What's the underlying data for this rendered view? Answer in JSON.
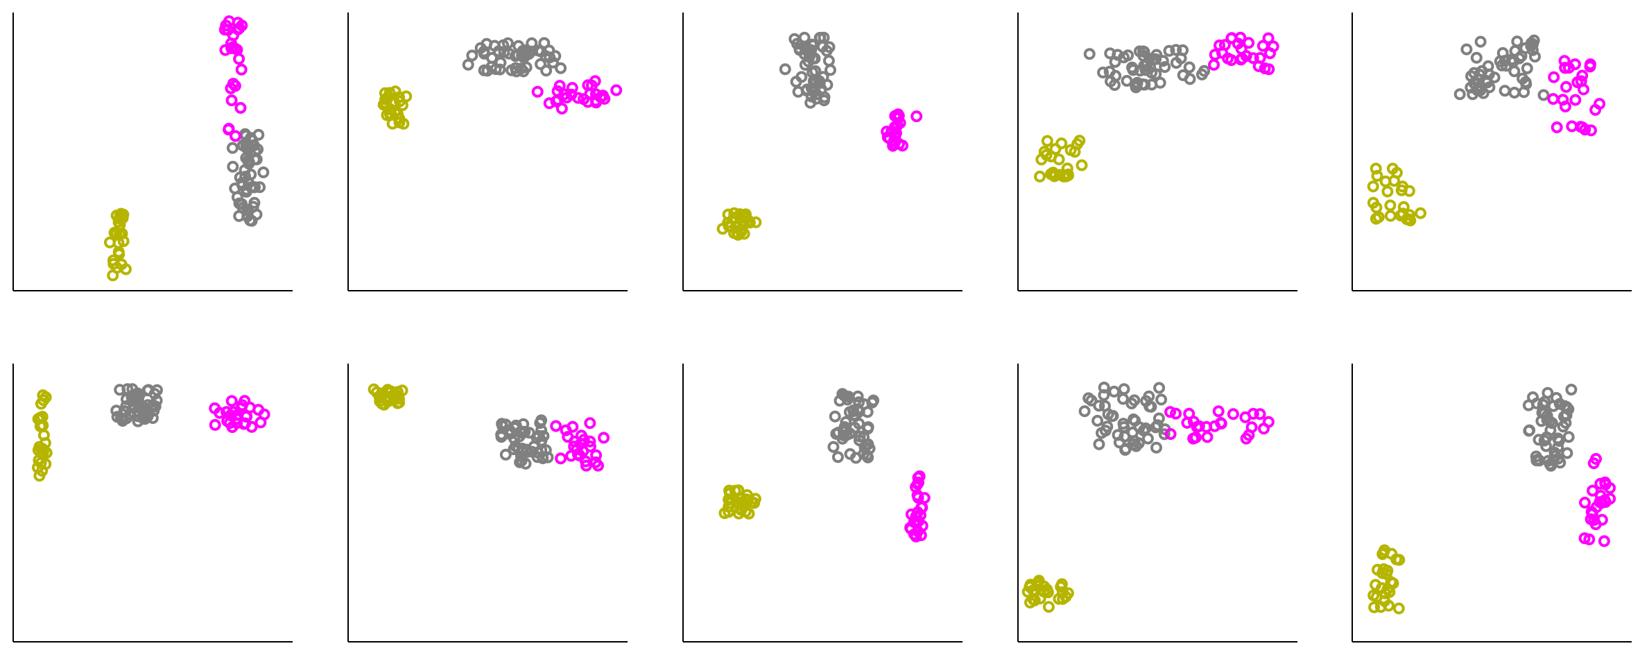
{
  "chart_data": [
    {
      "type": "scatter",
      "title": "",
      "xlabel": "",
      "ylabel": "",
      "xlim": [
        0,
        1
      ],
      "ylim": [
        0,
        1
      ],
      "grid": false,
      "axes_visible": [
        "left",
        "bottom"
      ],
      "ticks_visible": false,
      "series": [
        {
          "color": "#b5b500",
          "centroid": [
            0.38,
            0.17
          ],
          "spread": [
            0.04,
            0.12
          ],
          "count": 25,
          "marker": "open-circle"
        },
        {
          "color": "#808080",
          "centroid": [
            0.84,
            0.41
          ],
          "spread": [
            0.06,
            0.17
          ],
          "count": 50,
          "marker": "open-circle"
        },
        {
          "color": "#ff00ff",
          "centroid": [
            0.79,
            0.77
          ],
          "spread": [
            0.04,
            0.22
          ],
          "count": 25,
          "marker": "open-circle"
        }
      ]
    },
    {
      "type": "scatter",
      "title": "",
      "xlabel": "",
      "ylabel": "",
      "xlim": [
        0,
        1
      ],
      "ylim": [
        0,
        1
      ],
      "grid": false,
      "axes_visible": [
        "left",
        "bottom"
      ],
      "ticks_visible": false,
      "series": [
        {
          "color": "#b5b500",
          "centroid": [
            0.16,
            0.66
          ],
          "spread": [
            0.04,
            0.06
          ],
          "count": 25,
          "marker": "open-circle"
        },
        {
          "color": "#808080",
          "centroid": [
            0.6,
            0.84
          ],
          "spread": [
            0.14,
            0.06
          ],
          "count": 50,
          "marker": "open-circle"
        },
        {
          "color": "#ff00ff",
          "centroid": [
            0.83,
            0.7
          ],
          "spread": [
            0.12,
            0.06
          ],
          "count": 25,
          "marker": "open-circle"
        }
      ]
    },
    {
      "type": "scatter",
      "title": "",
      "xlabel": "",
      "ylabel": "",
      "xlim": [
        0,
        1
      ],
      "ylim": [
        0,
        1
      ],
      "grid": false,
      "axes_visible": [
        "left",
        "bottom"
      ],
      "ticks_visible": false,
      "series": [
        {
          "color": "#b5b500",
          "centroid": [
            0.2,
            0.24
          ],
          "spread": [
            0.12,
            0.04
          ],
          "count": 25,
          "marker": "open-circle"
        },
        {
          "color": "#808080",
          "centroid": [
            0.46,
            0.79
          ],
          "spread": [
            0.18,
            0.12
          ],
          "count": 50,
          "marker": "open-circle"
        },
        {
          "color": "#ff00ff",
          "centroid": [
            0.76,
            0.58
          ],
          "spread": [
            0.15,
            0.06
          ],
          "count": 25,
          "marker": "open-circle"
        }
      ]
    },
    {
      "type": "scatter",
      "title": "",
      "xlabel": "",
      "ylabel": "",
      "xlim": [
        0,
        1
      ],
      "ylim": [
        0,
        1
      ],
      "grid": false,
      "axes_visible": [
        "left",
        "bottom"
      ],
      "ticks_visible": false,
      "series": [
        {
          "color": "#b5b500",
          "centroid": [
            0.15,
            0.47
          ],
          "spread": [
            0.07,
            0.07
          ],
          "count": 25,
          "marker": "open-circle"
        },
        {
          "color": "#808080",
          "centroid": [
            0.46,
            0.8
          ],
          "spread": [
            0.16,
            0.07
          ],
          "count": 50,
          "marker": "open-circle"
        },
        {
          "color": "#ff00ff",
          "centroid": [
            0.81,
            0.85
          ],
          "spread": [
            0.1,
            0.06
          ],
          "count": 25,
          "marker": "open-circle"
        }
      ]
    },
    {
      "type": "scatter",
      "title": "",
      "xlabel": "",
      "ylabel": "",
      "xlim": [
        0,
        1
      ],
      "ylim": [
        0,
        1
      ],
      "grid": false,
      "axes_visible": [
        "left",
        "bottom"
      ],
      "ticks_visible": false,
      "series": [
        {
          "color": "#b5b500",
          "centroid": [
            0.15,
            0.33
          ],
          "spread": [
            0.08,
            0.11
          ],
          "count": 25,
          "marker": "open-circle"
        },
        {
          "color": "#808080",
          "centroid": [
            0.53,
            0.8
          ],
          "spread": [
            0.16,
            0.1
          ],
          "count": 50,
          "marker": "open-circle"
        },
        {
          "color": "#ff00ff",
          "centroid": [
            0.8,
            0.7
          ],
          "spread": [
            0.09,
            0.13
          ],
          "count": 25,
          "marker": "open-circle"
        }
      ]
    },
    {
      "type": "scatter",
      "title": "",
      "xlabel": "",
      "ylabel": "",
      "xlim": [
        0,
        1
      ],
      "ylim": [
        0,
        1
      ],
      "grid": false,
      "axes_visible": [
        "left",
        "bottom"
      ],
      "ticks_visible": false,
      "series": [
        {
          "color": "#b5b500",
          "centroid": [
            0.1,
            0.74
          ],
          "spread": [
            0.03,
            0.15
          ],
          "count": 25,
          "marker": "open-circle"
        },
        {
          "color": "#808080",
          "centroid": [
            0.45,
            0.85
          ],
          "spread": [
            0.13,
            0.06
          ],
          "count": 50,
          "marker": "open-circle"
        },
        {
          "color": "#ff00ff",
          "centroid": [
            0.81,
            0.82
          ],
          "spread": [
            0.13,
            0.05
          ],
          "count": 25,
          "marker": "open-circle"
        }
      ]
    },
    {
      "type": "scatter",
      "title": "",
      "xlabel": "",
      "ylabel": "",
      "xlim": [
        0,
        1
      ],
      "ylim": [
        0,
        1
      ],
      "grid": false,
      "axes_visible": [
        "left",
        "bottom"
      ],
      "ticks_visible": false,
      "series": [
        {
          "color": "#b5b500",
          "centroid": [
            0.14,
            0.88
          ],
          "spread": [
            0.05,
            0.03
          ],
          "count": 25,
          "marker": "open-circle"
        },
        {
          "color": "#808080",
          "centroid": [
            0.63,
            0.72
          ],
          "spread": [
            0.08,
            0.08
          ],
          "count": 50,
          "marker": "open-circle"
        },
        {
          "color": "#ff00ff",
          "centroid": [
            0.83,
            0.71
          ],
          "spread": [
            0.07,
            0.08
          ],
          "count": 25,
          "marker": "open-circle"
        }
      ]
    },
    {
      "type": "scatter",
      "title": "",
      "xlabel": "",
      "ylabel": "",
      "xlim": [
        0,
        1
      ],
      "ylim": [
        0,
        1
      ],
      "grid": false,
      "axes_visible": [
        "left",
        "bottom"
      ],
      "ticks_visible": false,
      "series": [
        {
          "color": "#b5b500",
          "centroid": [
            0.2,
            0.5
          ],
          "spread": [
            0.1,
            0.05
          ],
          "count": 25,
          "marker": "open-circle"
        },
        {
          "color": "#808080",
          "centroid": [
            0.6,
            0.78
          ],
          "spread": [
            0.16,
            0.12
          ],
          "count": 50,
          "marker": "open-circle"
        },
        {
          "color": "#ff00ff",
          "centroid": [
            0.84,
            0.48
          ],
          "spread": [
            0.07,
            0.14
          ],
          "count": 25,
          "marker": "open-circle"
        }
      ]
    },
    {
      "type": "scatter",
      "title": "",
      "xlabel": "",
      "ylabel": "",
      "xlim": [
        0,
        1
      ],
      "ylim": [
        0,
        1
      ],
      "grid": false,
      "axes_visible": [
        "left",
        "bottom"
      ],
      "ticks_visible": false,
      "series": [
        {
          "color": "#b5b500",
          "centroid": [
            0.1,
            0.17
          ],
          "spread": [
            0.09,
            0.05
          ],
          "count": 25,
          "marker": "open-circle"
        },
        {
          "color": "#808080",
          "centroid": [
            0.4,
            0.8
          ],
          "spread": [
            0.16,
            0.12
          ],
          "count": 50,
          "marker": "open-circle"
        },
        {
          "color": "#ff00ff",
          "centroid": [
            0.71,
            0.78
          ],
          "spread": [
            0.17,
            0.05
          ],
          "count": 25,
          "marker": "open-circle"
        }
      ]
    },
    {
      "type": "scatter",
      "title": "",
      "xlabel": "",
      "ylabel": "",
      "xlim": [
        0,
        1
      ],
      "ylim": [
        0,
        1
      ],
      "grid": false,
      "axes_visible": [
        "left",
        "bottom"
      ],
      "ticks_visible": false,
      "series": [
        {
          "color": "#b5b500",
          "centroid": [
            0.12,
            0.22
          ],
          "spread": [
            0.04,
            0.11
          ],
          "count": 25,
          "marker": "open-circle"
        },
        {
          "color": "#808080",
          "centroid": [
            0.71,
            0.77
          ],
          "spread": [
            0.07,
            0.14
          ],
          "count": 50,
          "marker": "open-circle"
        },
        {
          "color": "#ff00ff",
          "centroid": [
            0.88,
            0.5
          ],
          "spread": [
            0.05,
            0.16
          ],
          "count": 25,
          "marker": "open-circle"
        }
      ]
    }
  ]
}
